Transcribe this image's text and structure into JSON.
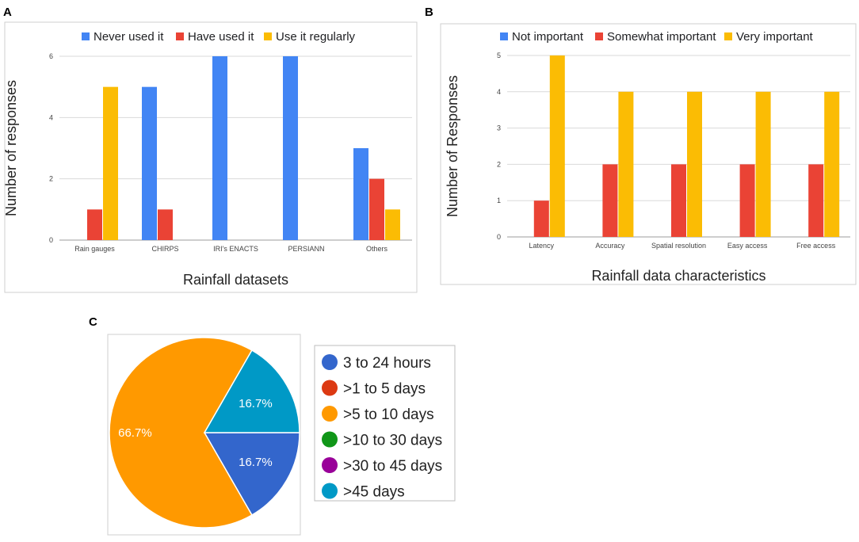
{
  "panel_labels": {
    "a": "A",
    "b": "B",
    "c": "C"
  },
  "colors": {
    "blue": "#4285F4",
    "red": "#EA4335",
    "yellow": "#FBBC04",
    "grid": "#d9d9d9",
    "pie_blue": "#3366CC",
    "pie_red": "#DC3912",
    "pie_orange": "#FF9900",
    "pie_green": "#109618",
    "pie_purple": "#990099",
    "pie_teal": "#0099C6"
  },
  "chart_data": [
    {
      "id": "A",
      "type": "bar",
      "title": "",
      "xlabel": "Rainfall datasets",
      "ylabel": "Number of responses",
      "categories": [
        "Rain gauges",
        "CHIRPS",
        "IRI's ENACTS",
        "PERSIANN",
        "Others"
      ],
      "series": [
        {
          "name": "Never used it",
          "color": "#4285F4",
          "values": [
            0,
            5,
            6,
            6,
            3
          ]
        },
        {
          "name": "Have used it",
          "color": "#EA4335",
          "values": [
            1,
            1,
            0,
            0,
            2
          ]
        },
        {
          "name": "Use it regularly",
          "color": "#FBBC04",
          "values": [
            5,
            0,
            0,
            0,
            1
          ]
        }
      ],
      "ylim": [
        0,
        6
      ],
      "yticks": [
        0,
        2,
        4,
        6
      ],
      "grid": true,
      "legend": "top"
    },
    {
      "id": "B",
      "type": "bar",
      "title": "",
      "xlabel": "Rainfall data characteristics",
      "ylabel": "Number of Responses",
      "categories": [
        "Latency",
        "Accuracy",
        "Spatial resolution",
        "Easy access",
        "Free access"
      ],
      "series": [
        {
          "name": "Not important",
          "color": "#4285F4",
          "values": [
            0,
            0,
            0,
            0,
            0
          ]
        },
        {
          "name": "Somewhat important",
          "color": "#EA4335",
          "values": [
            1,
            2,
            2,
            2,
            2
          ]
        },
        {
          "name": "Very important",
          "color": "#FBBC04",
          "values": [
            5,
            4,
            4,
            4,
            4
          ]
        }
      ],
      "ylim": [
        0,
        5
      ],
      "yticks": [
        0,
        1,
        2,
        3,
        4,
        5
      ],
      "grid": true,
      "legend": "top"
    },
    {
      "id": "C",
      "type": "pie",
      "title": "",
      "slices": [
        {
          "name": "3 to 24 hours",
          "color": "#3366CC",
          "value": 16.7,
          "label": "16.7%"
        },
        {
          "name": ">1 to 5 days",
          "color": "#DC3912",
          "value": 0,
          "label": ""
        },
        {
          "name": ">5 to 10 days",
          "color": "#FF9900",
          "value": 66.7,
          "label": "66.7%"
        },
        {
          "name": ">10 to 30 days",
          "color": "#109618",
          "value": 0,
          "label": ""
        },
        {
          "name": ">30 to 45 days",
          "color": "#990099",
          "value": 0,
          "label": ""
        },
        {
          "name": ">45 days",
          "color": "#0099C6",
          "value": 16.7,
          "label": "16.7%"
        }
      ],
      "legend": "right"
    }
  ]
}
